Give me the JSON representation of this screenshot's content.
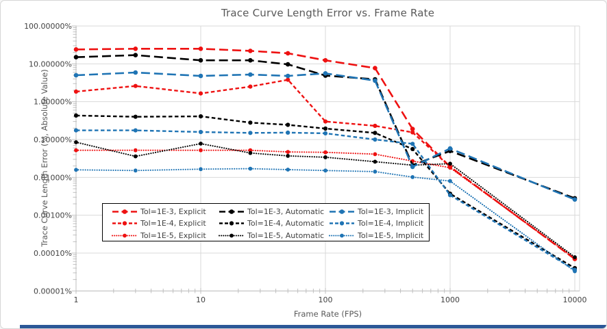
{
  "window": {
    "background": "#ffffff",
    "frame_border_color": "#d6d6d6",
    "bottom_bar_color": "#2b5797"
  },
  "chart_data": {
    "type": "line",
    "title": "Trace Curve Length Error vs. Frame Rate",
    "xlabel": "Frame Rate (FPS)",
    "ylabel": "Trace Curve Length Error (%, Absolute Value)",
    "x_scale": "log",
    "y_scale": "log",
    "xlim": [
      1,
      10000
    ],
    "ylim": [
      1e-05,
      100
    ],
    "x_ticks": [
      "1",
      "10",
      "100",
      "1000",
      "10000"
    ],
    "y_ticks": [
      "100.00000%",
      "10.00000%",
      "1.00000%",
      "0.10000%",
      "0.01000%",
      "0.00100%",
      "0.00010%",
      "0.00001%"
    ],
    "grid": true,
    "gridline_color": "#d9d9d9",
    "axis_line_color": "#bfbfbf",
    "tick_label_color": "#404040",
    "title_color": "#595959",
    "legend_position": "inside-lower-left",
    "colors": {
      "explicit": "#ee1111",
      "automatic": "#000000",
      "implicit": "#1f74b4"
    },
    "x": [
      1,
      3,
      10,
      25,
      50,
      100,
      250,
      500,
      1000,
      10000
    ],
    "series": [
      {
        "name": "Tol=1E-3, Explicit",
        "color": "#ee1111",
        "dash": "long",
        "values": [
          24,
          25,
          25,
          22,
          19,
          12.4,
          7.7,
          0.19,
          0.019,
          7e-05
        ]
      },
      {
        "name": "Tol=1E-4, Explicit",
        "color": "#ee1111",
        "dash": "med",
        "values": [
          1.85,
          2.6,
          1.65,
          2.5,
          3.8,
          0.3,
          0.23,
          0.155,
          0.019,
          7e-05
        ]
      },
      {
        "name": "Tol=1E-5, Explicit",
        "color": "#ee1111",
        "dash": "dot",
        "values": [
          0.052,
          0.052,
          0.052,
          0.052,
          0.047,
          0.046,
          0.041,
          0.027,
          0.018,
          7.2e-05
        ]
      },
      {
        "name": "Tol=1E-3, Automatic",
        "color": "#000000",
        "dash": "long",
        "values": [
          15,
          17,
          12.4,
          12.4,
          9.7,
          4.9,
          3.9,
          0.021,
          0.05,
          0.0028
        ]
      },
      {
        "name": "Tol=1E-4, Automatic",
        "color": "#000000",
        "dash": "med",
        "values": [
          0.43,
          0.4,
          0.41,
          0.28,
          0.245,
          0.195,
          0.15,
          0.056,
          0.0037,
          4e-05
        ]
      },
      {
        "name": "Tol=1E-5, Automatic",
        "color": "#000000",
        "dash": "dot",
        "values": [
          0.085,
          0.036,
          0.078,
          0.044,
          0.037,
          0.034,
          0.026,
          0.021,
          0.023,
          7.8e-05
        ]
      },
      {
        "name": "Tol=1E-3, Implicit",
        "color": "#1f74b4",
        "dash": "long",
        "values": [
          5.0,
          5.9,
          4.8,
          5.2,
          4.8,
          5.6,
          3.6,
          0.019,
          0.058,
          0.0026
        ]
      },
      {
        "name": "Tol=1E-4, Implicit",
        "color": "#1f74b4",
        "dash": "med",
        "values": [
          0.175,
          0.175,
          0.158,
          0.15,
          0.152,
          0.146,
          0.1,
          0.077,
          0.0034,
          3.6e-05
        ]
      },
      {
        "name": "Tol=1E-5, Implicit",
        "color": "#1f74b4",
        "dash": "dot",
        "values": [
          0.0158,
          0.0152,
          0.0165,
          0.017,
          0.016,
          0.0152,
          0.0142,
          0.0102,
          0.008,
          3.3e-05
        ]
      }
    ]
  }
}
